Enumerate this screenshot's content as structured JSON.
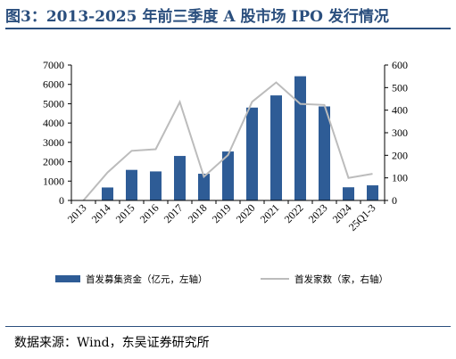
{
  "title": "图3：2013-2025 年前三季度 A 股市场 IPO 发行情况",
  "source": "数据来源：Wind，东吴证券研究所",
  "chart_data": {
    "type": "bar",
    "categories": [
      "2013",
      "2014",
      "2015",
      "2016",
      "2017",
      "2018",
      "2019",
      "2020",
      "2021",
      "2022",
      "2023",
      "2024",
      "25Q1-3"
    ],
    "series": [
      {
        "name": "首发募集资金（亿元，左轴）",
        "type": "bar",
        "axis": "left",
        "color": "#2e5c96",
        "values": [
          0,
          670,
          1580,
          1500,
          2300,
          1380,
          2530,
          4800,
          5430,
          6420,
          4860,
          680,
          780
        ]
      },
      {
        "name": "首发家数（家，右轴）",
        "type": "line",
        "axis": "right",
        "color": "#bcbcbc",
        "values": [
          0,
          124,
          220,
          227,
          436,
          105,
          201,
          437,
          523,
          428,
          423,
          100,
          118
        ]
      }
    ],
    "y_left": {
      "ylim": [
        0,
        7000
      ],
      "ticks": [
        0,
        1000,
        2000,
        3000,
        4000,
        5000,
        6000,
        7000
      ]
    },
    "y_right": {
      "ylim": [
        0,
        600
      ],
      "ticks": [
        0,
        100,
        200,
        300,
        400,
        500,
        600
      ]
    },
    "grid": false,
    "legend_position": "bottom"
  }
}
